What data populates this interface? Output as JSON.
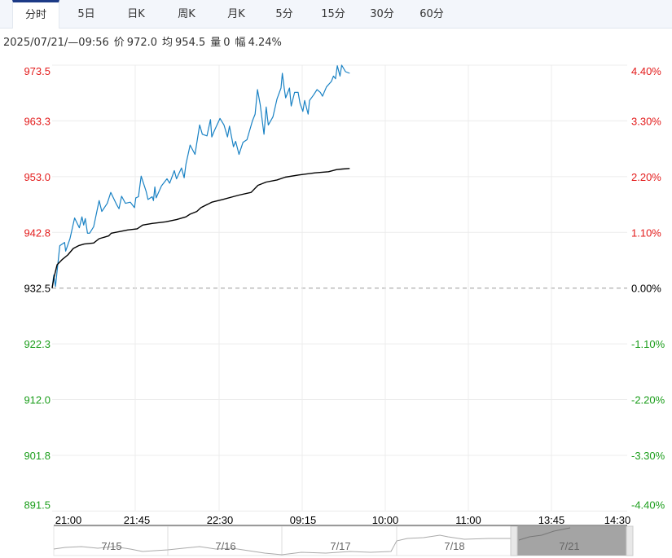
{
  "tabs": [
    {
      "label": "分时",
      "active": true
    },
    {
      "label": "5日"
    },
    {
      "label": "日K"
    },
    {
      "label": "周K"
    },
    {
      "label": "月K"
    },
    {
      "label": "5分"
    },
    {
      "label": "15分"
    },
    {
      "label": "30分"
    },
    {
      "label": "60分"
    }
  ],
  "info": {
    "datetime": "2025/07/21/—09:56",
    "price_label": "价",
    "price": "972.0",
    "avg_label": "均",
    "avg": "954.5",
    "vol_label": "量",
    "vol": "0",
    "change_label": "幅",
    "change": "4.24%"
  },
  "colors": {
    "price_line": "#1a82c4",
    "avg_line": "#000000",
    "up": "#e31b1b",
    "down": "#1c9e1c",
    "flat": "#000000",
    "grid": "#ececec"
  },
  "chart_data": {
    "type": "line",
    "prev_close": 932.5,
    "ylim": [
      891.5,
      973.5
    ],
    "session_minutes": 345,
    "y_ticks_left": [
      "973.5",
      "963.3",
      "953.0",
      "942.8",
      "932.5",
      "922.3",
      "912.0",
      "901.8",
      "891.5"
    ],
    "y_ticks_right": [
      "4.40%",
      "3.30%",
      "2.20%",
      "1.10%",
      "0.00%",
      "-1.10%",
      "-2.20%",
      "-3.30%",
      "-4.40%"
    ],
    "x_ticks": [
      "21:00",
      "21:45",
      "22:30",
      "09:15",
      "10:00",
      "11:00",
      "13:45",
      "14:30"
    ],
    "series": [
      {
        "name": "价",
        "points": [
          [
            0,
            932.5
          ],
          [
            1,
            934.9
          ],
          [
            2,
            932.8
          ],
          [
            4.6,
            940.3
          ],
          [
            7.5,
            940.9
          ],
          [
            8.1,
            939.3
          ],
          [
            10.7,
            941.6
          ],
          [
            13.5,
            945.4
          ],
          [
            16.3,
            943.6
          ],
          [
            17.9,
            945.6
          ],
          [
            18.9,
            944.1
          ],
          [
            19.9,
            945.3
          ],
          [
            21.2,
            942.6
          ],
          [
            22.5,
            942.6
          ],
          [
            24.9,
            943.8
          ],
          [
            28.2,
            948.6
          ],
          [
            29.8,
            946.6
          ],
          [
            33.1,
            948.1
          ],
          [
            35.2,
            950.1
          ],
          [
            38.8,
            947.8
          ],
          [
            40.1,
            947.1
          ],
          [
            41.7,
            949.4
          ],
          [
            44,
            948.1
          ],
          [
            46.9,
            948.3
          ],
          [
            49.4,
            947.3
          ],
          [
            50.2,
            949.1
          ],
          [
            51.8,
            949.3
          ],
          [
            53.4,
            953.1
          ],
          [
            56.4,
            950.3
          ],
          [
            57.5,
            948.8
          ],
          [
            60,
            949.3
          ],
          [
            60.8,
            948.6
          ],
          [
            61.6,
            951.1
          ],
          [
            62.4,
            949.1
          ],
          [
            65.6,
            951.3
          ],
          [
            68.9,
            952.6
          ],
          [
            70.5,
            951.8
          ],
          [
            73.3,
            954.1
          ],
          [
            74.6,
            952.6
          ],
          [
            77.6,
            954.6
          ],
          [
            79.2,
            952.8
          ],
          [
            80.3,
            955.3
          ],
          [
            82.8,
            958.8
          ],
          [
            85.7,
            957.1
          ],
          [
            88.5,
            962.5
          ],
          [
            90.1,
            960.8
          ],
          [
            92.9,
            960.5
          ],
          [
            95,
            963.5
          ],
          [
            95.8,
            960.3
          ],
          [
            97.4,
            961.5
          ],
          [
            100.7,
            963.7
          ],
          [
            103.1,
            962.5
          ],
          [
            105.2,
            960.3
          ],
          [
            106.4,
            962.3
          ],
          [
            108.8,
            958.5
          ],
          [
            110.1,
            959.5
          ],
          [
            112.1,
            957.1
          ],
          [
            114.5,
            959.3
          ],
          [
            116.9,
            959.8
          ],
          [
            120.2,
            963.3
          ],
          [
            121.8,
            964.5
          ],
          [
            123.2,
            969.0
          ],
          [
            124.8,
            966.3
          ],
          [
            127.1,
            960.8
          ],
          [
            128.4,
            965.8
          ],
          [
            129.7,
            962.5
          ],
          [
            132.5,
            964.0
          ],
          [
            134.9,
            967.3
          ],
          [
            137.3,
            969.3
          ],
          [
            138.1,
            972.0
          ],
          [
            139.2,
            969.3
          ],
          [
            140.1,
            967.5
          ],
          [
            142.4,
            969.3
          ],
          [
            143.4,
            966.0
          ],
          [
            145.5,
            968.5
          ],
          [
            147.6,
            968.5
          ],
          [
            148.7,
            966.5
          ],
          [
            150.4,
            965.0
          ],
          [
            151.5,
            967.0
          ],
          [
            153.6,
            964.5
          ],
          [
            154.4,
            967.0
          ],
          [
            156.8,
            968.0
          ],
          [
            158.9,
            969.0
          ],
          [
            160.9,
            968.5
          ],
          [
            162.2,
            967.8
          ],
          [
            164.6,
            969.5
          ],
          [
            167.5,
            970.5
          ],
          [
            168.8,
            971.5
          ],
          [
            170,
            971.0
          ],
          [
            171.1,
            973.4
          ],
          [
            172.7,
            971.5
          ],
          [
            173.7,
            973.5
          ],
          [
            176,
            972.3
          ],
          [
            178.5,
            972.0
          ]
        ]
      },
      {
        "name": "均",
        "points": [
          [
            0,
            932.5
          ],
          [
            1,
            934.3
          ],
          [
            3,
            936.8
          ],
          [
            6.2,
            937.8
          ],
          [
            9.4,
            938.6
          ],
          [
            12.7,
            939.8
          ],
          [
            15.9,
            940.3
          ],
          [
            19.2,
            940.6
          ],
          [
            24.9,
            940.8
          ],
          [
            28.2,
            941.6
          ],
          [
            33.9,
            942.1
          ],
          [
            35.5,
            942.6
          ],
          [
            40.4,
            942.9
          ],
          [
            45.3,
            943.2
          ],
          [
            51,
            943.4
          ],
          [
            54.3,
            944.1
          ],
          [
            60,
            944.4
          ],
          [
            68.1,
            944.7
          ],
          [
            74.6,
            945.1
          ],
          [
            80.3,
            945.6
          ],
          [
            82.8,
            946.1
          ],
          [
            86.8,
            946.6
          ],
          [
            89.3,
            947.3
          ],
          [
            95.8,
            948.3
          ],
          [
            102.3,
            948.8
          ],
          [
            112.1,
            949.6
          ],
          [
            119.4,
            950.1
          ],
          [
            123.5,
            951.4
          ],
          [
            128.4,
            952.0
          ],
          [
            134.9,
            952.4
          ],
          [
            139.8,
            952.9
          ],
          [
            147.9,
            953.3
          ],
          [
            157.7,
            953.7
          ],
          [
            165.8,
            953.9
          ],
          [
            170.7,
            954.3
          ],
          [
            174,
            954.4
          ],
          [
            178.5,
            954.5
          ]
        ]
      }
    ]
  },
  "navigator": {
    "days": [
      "7/15",
      "7/16",
      "7/17",
      "7/18",
      "7/21"
    ],
    "selected": "7/21"
  }
}
